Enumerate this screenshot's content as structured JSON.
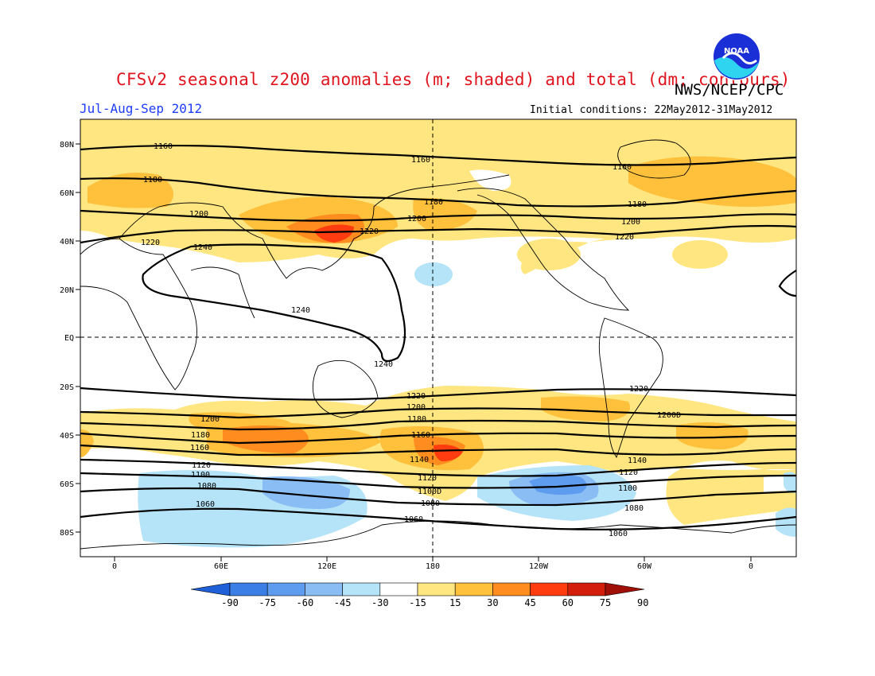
{
  "header": {
    "title": "CFSv2 seasonal z200 anomalies (m; shaded) and total (dm; contours)",
    "agency": "NWS/NCEP/CPC",
    "period": "Jul-Aug-Sep 2012",
    "initial_conditions": "Initial conditions: 22May2012-31May2012",
    "logo_text": "NOAA"
  },
  "map": {
    "lat_labels": [
      "80N",
      "60N",
      "40N",
      "20N",
      "EQ",
      "20S",
      "40S",
      "60S",
      "80S"
    ],
    "lon_labels": [
      "0",
      "60E",
      "120E",
      "180",
      "120W",
      "60W",
      "0"
    ],
    "contour_labels": [
      "1160",
      "1160",
      "1160",
      "1180",
      "1180",
      "1180",
      "1200",
      "1200",
      "1200",
      "1220",
      "1220",
      "1220",
      "1240",
      "1240",
      "1240",
      "1220",
      "1220",
      "1200",
      "1200",
      "1200D",
      "1180",
      "1180",
      "1160",
      "1160",
      "1140",
      "1140",
      "1120",
      "1120",
      "1120",
      "1100",
      "1100D",
      "1100",
      "1080",
      "1080",
      "1080",
      "1060",
      "1060",
      "1060"
    ]
  },
  "legend": {
    "labels": [
      "-90",
      "-75",
      "-60",
      "-45",
      "-30",
      "-15",
      "15",
      "30",
      "45",
      "60",
      "75",
      "90"
    ],
    "colors": [
      "#1f5fd8",
      "#3a7ee6",
      "#5e9cf0",
      "#8bbdf5",
      "#b5e3f7",
      "#ffffff",
      "#ffe680",
      "#ffc03c",
      "#ff8c1e",
      "#ff3c0f",
      "#d21e0a",
      "#a01008"
    ]
  },
  "colors": {
    "title": "#e0141e",
    "period": "#1e3cff",
    "contour": "#000000"
  }
}
